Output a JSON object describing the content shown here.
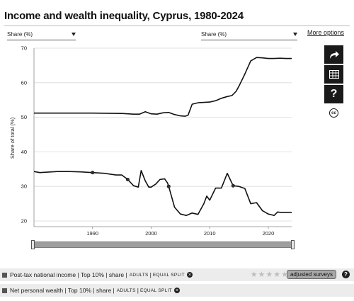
{
  "title": "Income and wealth inequality, Cyprus, 1980-2024",
  "selectors": {
    "left": "Share (%)",
    "right": "Share (%)"
  },
  "more_options": "More options",
  "legend": {
    "row1": {
      "label": "Post-tax national income | Top 10% | share |",
      "small1": "ADULTS",
      "sep": "|",
      "small2": "EQUAL SPLIT",
      "stars": "★★★★★",
      "button": "adjusted surveys"
    },
    "row2": {
      "label": "Net personal wealth | Top 10% | share |",
      "small1": "ADULTS",
      "sep": "|",
      "small2": "EQUAL SPLIT"
    }
  },
  "chart_data": {
    "type": "line",
    "title": "Income and wealth inequality, Cyprus, 1980-2024",
    "xlabel": "",
    "ylabel": "Share of total (%)",
    "xlim": [
      1980,
      2024
    ],
    "ylim": [
      20,
      70
    ],
    "yticks": [
      20,
      30,
      40,
      50,
      60,
      70
    ],
    "xticks": [
      1990,
      2000,
      2010,
      2020
    ],
    "grid": "horizontal",
    "series": [
      {
        "name": "Net personal wealth | Top 10% | share",
        "color": "#111111",
        "x": [
          1980,
          1985,
          1990,
          1995,
          1997,
          1998,
          1999,
          2000,
          2001,
          2002,
          2003,
          2004,
          2005,
          2005.8,
          2006.3,
          2007,
          2008,
          2009,
          2010,
          2011,
          2012,
          2013,
          2013.8,
          2014.5,
          2015,
          2016,
          2017,
          2018,
          2019,
          2020,
          2021,
          2022,
          2023,
          2024
        ],
        "y": [
          51.2,
          51.2,
          51.2,
          51.1,
          50.9,
          50.9,
          51.6,
          51.0,
          50.9,
          51.3,
          51.4,
          50.8,
          50.4,
          50.3,
          50.6,
          53.8,
          54.2,
          54.3,
          54.4,
          54.8,
          55.5,
          56.0,
          56.3,
          57.5,
          59.0,
          62.5,
          66.3,
          67.3,
          67.2,
          67.0,
          67.0,
          67.1,
          67.0,
          67.0
        ]
      },
      {
        "name": "Post-tax national income | Top 10% | share",
        "color": "#111111",
        "x": [
          1980,
          1981,
          1982,
          1984,
          1986,
          1988,
          1990,
          1992,
          1994,
          1995,
          1996,
          1997,
          1997.8,
          1998.3,
          1999,
          1999.6,
          2000,
          2000.8,
          2001.5,
          2002.3,
          2002.8,
          2003,
          2003.5,
          2004,
          2005,
          2006,
          2007,
          2008,
          2009,
          2009.5,
          2010,
          2011,
          2012,
          2013,
          2013.5,
          2014,
          2015,
          2016,
          2017,
          2018,
          2019,
          2020,
          2021,
          2021.6,
          2022,
          2023,
          2024
        ],
        "y": [
          34.3,
          34.0,
          34.1,
          34.3,
          34.3,
          34.2,
          34.0,
          33.8,
          33.3,
          33.3,
          32.0,
          30.2,
          29.8,
          34.6,
          31.6,
          29.8,
          29.8,
          30.7,
          32.0,
          32.2,
          31.0,
          30.0,
          27.0,
          24.0,
          22.0,
          21.6,
          22.3,
          21.9,
          25.0,
          27.2,
          26.0,
          29.5,
          29.5,
          33.8,
          32.0,
          30.2,
          30.0,
          29.4,
          25.0,
          25.3,
          23.0,
          22.0,
          21.6,
          22.6,
          22.5,
          22.5,
          22.5
        ]
      }
    ],
    "markers": [
      {
        "series": 1,
        "x": 1990,
        "y": 34.0
      },
      {
        "series": 1,
        "x": 1996,
        "y": 32.0
      },
      {
        "series": 1,
        "x": 2003,
        "y": 30.0
      },
      {
        "series": 1,
        "x": 2014,
        "y": 30.2
      }
    ]
  }
}
